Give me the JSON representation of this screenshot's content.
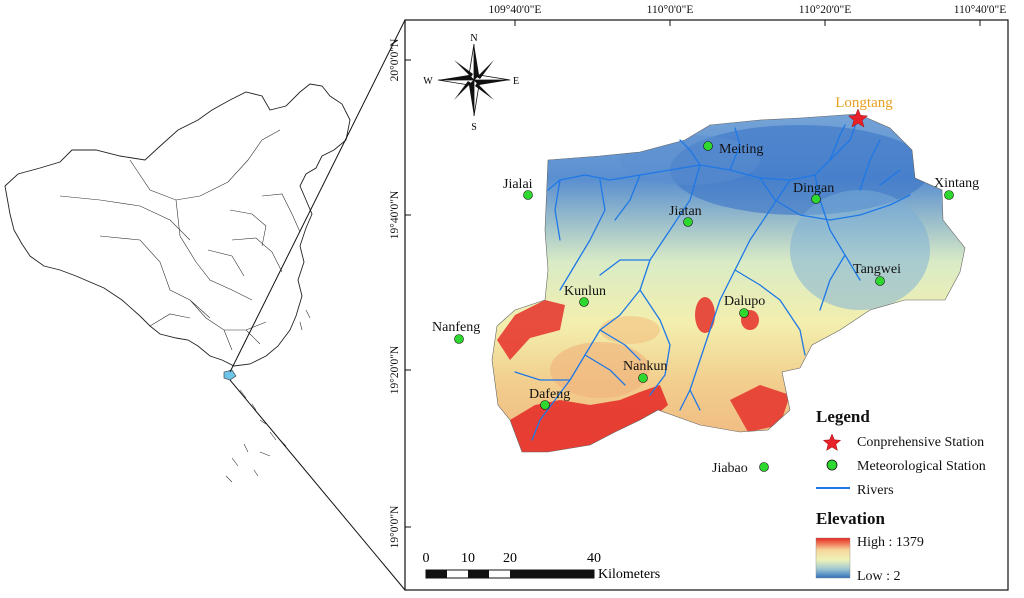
{
  "coordinates": {
    "top": [
      "109°40'0\"E",
      "110°0'0\"E",
      "110°20'0\"E",
      "110°40'0\"E"
    ],
    "left": [
      "20°0'0\"N",
      "19°40'0\"N",
      "19°20'0\"N",
      "19°0'0\"N"
    ]
  },
  "compass": {
    "n": "N",
    "s": "S",
    "e": "E",
    "w": "W"
  },
  "stations": [
    {
      "name": "Longtang",
      "type": "comprehensive"
    },
    {
      "name": "Meiting",
      "type": "meteorological"
    },
    {
      "name": "Jialai",
      "type": "meteorological"
    },
    {
      "name": "Dingan",
      "type": "meteorological"
    },
    {
      "name": "Xintang",
      "type": "meteorological"
    },
    {
      "name": "Jiatan",
      "type": "meteorological"
    },
    {
      "name": "Tangwei",
      "type": "meteorological"
    },
    {
      "name": "Kunlun",
      "type": "meteorological"
    },
    {
      "name": "Dalupo",
      "type": "meteorological"
    },
    {
      "name": "Nanfeng",
      "type": "meteorological"
    },
    {
      "name": "Nankun",
      "type": "meteorological"
    },
    {
      "name": "Dafeng",
      "type": "meteorological"
    },
    {
      "name": "Jiabao",
      "type": "meteorological"
    }
  ],
  "legend": {
    "title": "Legend",
    "items": [
      "Conprehensive Station",
      "Meteorological Station",
      "Rivers"
    ],
    "colors": {
      "comprehensive": "#e8202a",
      "meteorological": "#2fd82f",
      "rivers": "#1e78e6"
    }
  },
  "elevation": {
    "title": "Elevation",
    "high": "High : 1379",
    "low": "Low : 2",
    "ramp": [
      "#e8261f",
      "#f6d79b",
      "#eef2b8",
      "#9cc6d3",
      "#2f6fb8"
    ]
  },
  "scale_bar": {
    "ticks": [
      "0",
      "10",
      "20",
      "40"
    ],
    "unit": "Kilometers"
  }
}
